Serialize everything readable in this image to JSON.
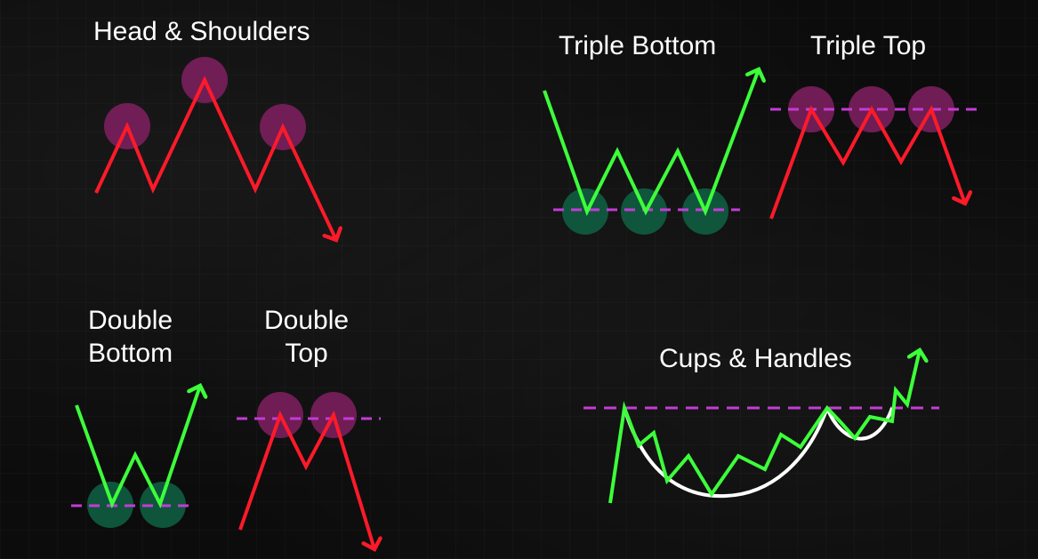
{
  "patterns": {
    "head_shoulders": {
      "title": "Head & Shoulders"
    },
    "triple_bottom": {
      "title": "Triple Bottom"
    },
    "triple_top": {
      "title": "Triple Top"
    },
    "double_bottom": {
      "title_line1": "Double",
      "title_line2": "Bottom"
    },
    "double_top": {
      "title_line1": "Double",
      "title_line2": "Top"
    },
    "cups_handles": {
      "title": "Cups & Handles"
    }
  },
  "colors": {
    "bullish_line": "#3dff3a",
    "bearish_line": "#ff1a2a",
    "level_line": "#c43bd6",
    "peak_marker": "#7a1f5c",
    "trough_marker": "#0f5a3e",
    "cup_curve": "#ffffff",
    "text": "#ffffff",
    "background": "#0c0c0c"
  }
}
